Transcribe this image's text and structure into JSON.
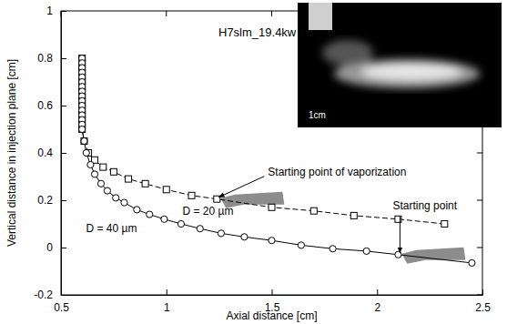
{
  "chart_data": {
    "type": "line",
    "title": "H7slm_19.4kw",
    "x_label": "Axial distance [cm]",
    "y_label": "Vertical distance in injection plane [cm]",
    "xlim": [
      0.5,
      2.5
    ],
    "ylim": [
      -0.2,
      1
    ],
    "xticks": [
      0.5,
      1,
      1.5,
      2,
      2.5
    ],
    "yticks": [
      -0.2,
      0,
      0.2,
      0.4,
      0.6,
      0.8,
      1
    ],
    "grid": false,
    "series": [
      {
        "name": "D = 20 µm",
        "color": "#000000",
        "marker": "square",
        "line_style": "dashed",
        "x": [
          0.6,
          0.6,
          0.6,
          0.6,
          0.6,
          0.6,
          0.6,
          0.6,
          0.6,
          0.6,
          0.6,
          0.6,
          0.6,
          0.6,
          0.6,
          0.6,
          0.61,
          0.63,
          0.66,
          0.7,
          0.75,
          0.82,
          0.9,
          1.0,
          1.12,
          1.24,
          1.5,
          1.7,
          1.89,
          2.1,
          2.32
        ],
        "values": [
          0.8,
          0.78,
          0.76,
          0.74,
          0.72,
          0.7,
          0.68,
          0.66,
          0.64,
          0.62,
          0.6,
          0.58,
          0.56,
          0.54,
          0.52,
          0.5,
          0.45,
          0.4,
          0.37,
          0.34,
          0.32,
          0.29,
          0.27,
          0.245,
          0.22,
          0.205,
          0.17,
          0.155,
          0.135,
          0.12,
          0.1
        ]
      },
      {
        "name": "D = 40 µm",
        "color": "#000000",
        "marker": "circle",
        "line_style": "solid",
        "x": [
          0.6,
          0.6,
          0.6,
          0.6,
          0.6,
          0.6,
          0.6,
          0.6,
          0.6,
          0.6,
          0.6,
          0.6,
          0.6,
          0.6,
          0.6,
          0.6,
          0.61,
          0.62,
          0.64,
          0.66,
          0.69,
          0.72,
          0.76,
          0.8,
          0.86,
          0.92,
          0.99,
          1.07,
          1.16,
          1.26,
          1.37,
          1.5,
          1.64,
          1.79,
          1.95,
          2.1,
          2.45
        ],
        "values": [
          0.8,
          0.78,
          0.76,
          0.74,
          0.72,
          0.7,
          0.68,
          0.66,
          0.64,
          0.62,
          0.6,
          0.58,
          0.56,
          0.54,
          0.52,
          0.5,
          0.45,
          0.4,
          0.35,
          0.31,
          0.27,
          0.24,
          0.21,
          0.19,
          0.16,
          0.14,
          0.12,
          0.1,
          0.08,
          0.06,
          0.045,
          0.03,
          0.01,
          -0.005,
          -0.015,
          -0.03,
          -0.065
        ]
      }
    ],
    "annotations": [
      {
        "text": "Starting point of vaporization",
        "x": 1.24,
        "y": 0.205
      },
      {
        "text": "Starting point",
        "x": 2.1,
        "y": -0.03
      }
    ],
    "inset_label": "1cm"
  }
}
